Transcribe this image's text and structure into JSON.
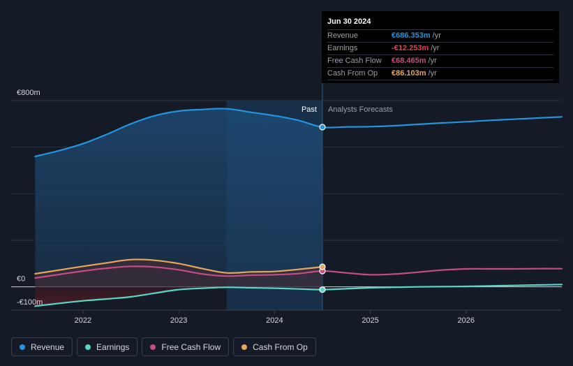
{
  "colors": {
    "background": "#151b26",
    "revenue": "#2394df",
    "earnings": "#58d7c5",
    "free_cash_flow": "#c54c84",
    "cash_from_op": "#e5a85a",
    "grid": "#2a303a",
    "past_shade": "#1a3a5a"
  },
  "tooltip": {
    "date": "Jun 30 2024",
    "rows": [
      {
        "name": "Revenue",
        "value": "€686.353m",
        "unit": "/yr",
        "color": "#2394df"
      },
      {
        "name": "Earnings",
        "value": "-€12.253m",
        "unit": "/yr",
        "color": "#e8404a"
      },
      {
        "name": "Free Cash Flow",
        "value": "€68.465m",
        "unit": "/yr",
        "color": "#c54c84"
      },
      {
        "name": "Cash From Op",
        "value": "€86.103m",
        "unit": "/yr",
        "color": "#e5a85a"
      }
    ]
  },
  "chart_data": {
    "type": "area",
    "title": "",
    "xlabel": "",
    "ylabel": "",
    "ylim": [
      -100,
      800
    ],
    "y_axis_labels": [
      {
        "value": 800,
        "label": "€800m"
      },
      {
        "value": 0,
        "label": "€0"
      },
      {
        "value": -100,
        "label": "-€100m"
      }
    ],
    "x_ticks": [
      {
        "value": 2022,
        "label": "2022"
      },
      {
        "value": 2023,
        "label": "2023"
      },
      {
        "value": 2024,
        "label": "2024"
      },
      {
        "value": 2025,
        "label": "2025"
      },
      {
        "value": 2026,
        "label": "2026"
      }
    ],
    "xlim": [
      2021.25,
      2027.0
    ],
    "past_label": "Past",
    "forecast_label": "Analysts Forecasts",
    "past_end": 2024.5,
    "highlight_start": 2023.5,
    "series": [
      {
        "name": "Revenue",
        "key": "revenue",
        "fill": true,
        "x": [
          2021.5,
          2021.75,
          2022.0,
          2022.25,
          2022.5,
          2022.75,
          2023.0,
          2023.25,
          2023.5,
          2023.75,
          2024.0,
          2024.25,
          2024.5,
          2024.75,
          2025.0,
          2025.25,
          2025.5,
          2025.75,
          2026.0,
          2026.25,
          2026.5,
          2026.75,
          2027.0
        ],
        "values": [
          560,
          585,
          615,
          655,
          700,
          735,
          755,
          762,
          765,
          750,
          735,
          715,
          686,
          687,
          688,
          692,
          698,
          704,
          709,
          715,
          720,
          725,
          730
        ]
      },
      {
        "name": "Earnings",
        "key": "earnings",
        "fill": false,
        "x": [
          2021.5,
          2021.75,
          2022.0,
          2022.25,
          2022.5,
          2022.75,
          2023.0,
          2023.25,
          2023.5,
          2023.75,
          2024.0,
          2024.25,
          2024.5,
          2024.75,
          2025.0,
          2025.25,
          2025.5,
          2025.75,
          2026.0,
          2026.25,
          2026.5,
          2026.75,
          2027.0
        ],
        "values": [
          -83,
          -71,
          -60,
          -52,
          -43,
          -27,
          -12,
          -6,
          -2,
          -4,
          -6,
          -9,
          -12,
          -8,
          -4,
          -2,
          0,
          1,
          2,
          4,
          6,
          8,
          10
        ]
      },
      {
        "name": "Free Cash Flow",
        "key": "free_cash_flow",
        "fill": false,
        "x": [
          2021.5,
          2021.75,
          2022.0,
          2022.25,
          2022.5,
          2022.75,
          2023.0,
          2023.25,
          2023.5,
          2023.75,
          2024.0,
          2024.25,
          2024.5,
          2024.75,
          2025.0,
          2025.25,
          2025.5,
          2025.75,
          2026.0,
          2026.25,
          2026.5,
          2026.75,
          2027.0
        ],
        "values": [
          38,
          53,
          68,
          80,
          88,
          85,
          73,
          55,
          46,
          50,
          52,
          57,
          68,
          60,
          52,
          55,
          63,
          72,
          77,
          77,
          77,
          78,
          78
        ]
      },
      {
        "name": "Cash From Op",
        "key": "cash_from_op",
        "fill": false,
        "x": [
          2021.5,
          2021.75,
          2022.0,
          2022.25,
          2022.5,
          2022.75,
          2023.0,
          2023.25,
          2023.5,
          2023.75,
          2024.0,
          2024.25,
          2024.5
        ],
        "values": [
          56,
          72,
          88,
          103,
          117,
          114,
          100,
          78,
          60,
          64,
          66,
          75,
          86
        ]
      }
    ]
  },
  "legend": [
    {
      "label": "Revenue",
      "key": "revenue"
    },
    {
      "label": "Earnings",
      "key": "earnings"
    },
    {
      "label": "Free Cash Flow",
      "key": "free_cash_flow"
    },
    {
      "label": "Cash From Op",
      "key": "cash_from_op"
    }
  ]
}
